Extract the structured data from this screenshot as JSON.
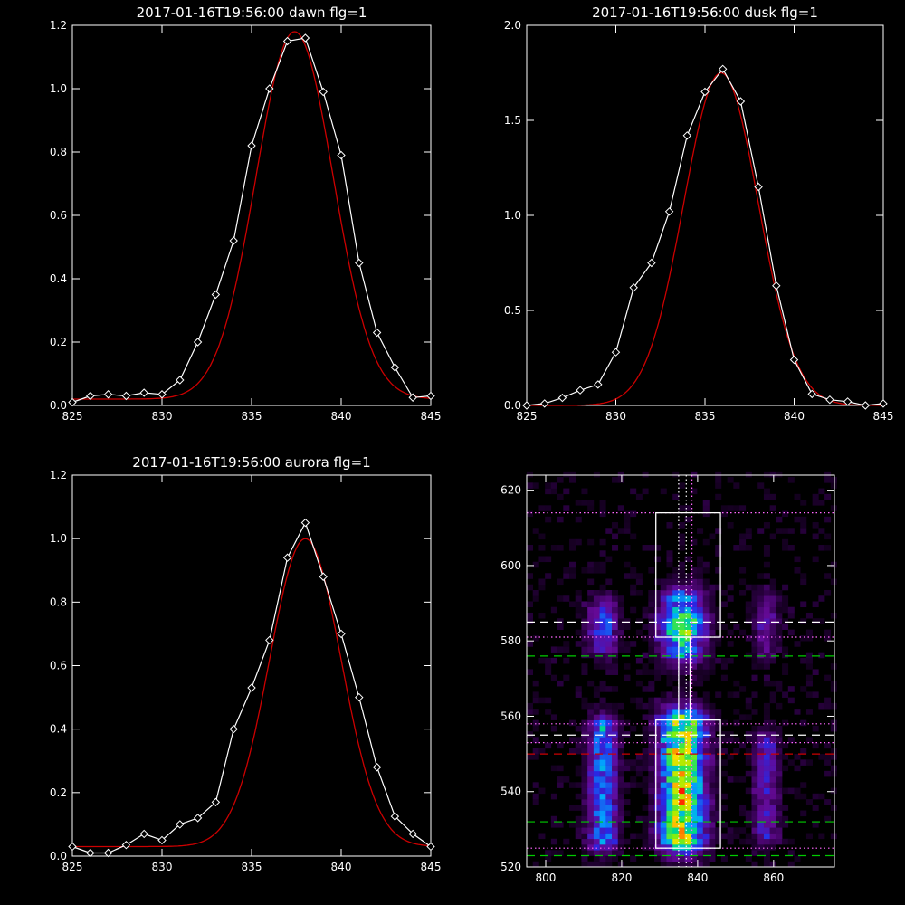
{
  "chart_data": [
    {
      "type": "line",
      "title": "2017-01-16T19:56:00 dawn flg=1",
      "xlim": [
        825,
        845
      ],
      "ylim": [
        0.0,
        1.2
      ],
      "xticks": [
        "825",
        "830",
        "835",
        "840",
        "845"
      ],
      "yticks": [
        "0.0",
        "0.2",
        "0.4",
        "0.6",
        "0.8",
        "1.0",
        "1.2"
      ],
      "grid": false,
      "series": [
        {
          "color": "#ffffff",
          "marker": "diamond",
          "x": [
            825,
            826,
            827,
            828,
            829,
            830,
            831,
            832,
            833,
            834,
            835,
            836,
            837,
            838,
            839,
            840,
            841,
            842,
            843,
            844,
            845
          ],
          "y": [
            0.01,
            0.03,
            0.035,
            0.03,
            0.04,
            0.035,
            0.08,
            0.2,
            0.35,
            0.52,
            0.82,
            1.0,
            1.15,
            1.16,
            0.99,
            0.79,
            0.45,
            0.23,
            0.12,
            0.025,
            0.03
          ]
        },
        {
          "color": "#cc0000",
          "fit": "gaussian",
          "amplitude": 1.16,
          "center": 837.4,
          "sigma": 2.15,
          "offset": 0.02
        }
      ]
    },
    {
      "type": "line",
      "title": "2017-01-16T19:56:00 dusk flg=1",
      "xlim": [
        825,
        845
      ],
      "ylim": [
        0.0,
        2.0
      ],
      "xticks": [
        "825",
        "830",
        "835",
        "840",
        "845"
      ],
      "yticks": [
        "0.0",
        "0.5",
        "1.0",
        "1.5",
        "2.0"
      ],
      "grid": false,
      "series": [
        {
          "color": "#ffffff",
          "marker": "diamond",
          "x": [
            825,
            826,
            827,
            828,
            829,
            830,
            831,
            832,
            833,
            834,
            835,
            836,
            837,
            838,
            839,
            840,
            841,
            842,
            843,
            844,
            845
          ],
          "y": [
            0.0,
            0.01,
            0.04,
            0.08,
            0.11,
            0.28,
            0.62,
            0.75,
            1.02,
            1.42,
            1.65,
            1.77,
            1.6,
            1.15,
            0.63,
            0.24,
            0.06,
            0.03,
            0.02,
            0.0,
            0.01
          ]
        },
        {
          "color": "#cc0000",
          "fit": "gaussian",
          "amplitude": 1.75,
          "center": 835.9,
          "sigma": 2.1,
          "offset": 0.0
        }
      ]
    },
    {
      "type": "line",
      "title": "2017-01-16T19:56:00 aurora flg=1",
      "xlim": [
        825,
        845
      ],
      "ylim": [
        0.0,
        1.2
      ],
      "xticks": [
        "825",
        "830",
        "835",
        "840",
        "845"
      ],
      "yticks": [
        "0.0",
        "0.2",
        "0.4",
        "0.6",
        "0.8",
        "1.0",
        "1.2"
      ],
      "grid": false,
      "series": [
        {
          "color": "#ffffff",
          "marker": "diamond",
          "x": [
            825,
            826,
            827,
            828,
            829,
            830,
            831,
            832,
            833,
            834,
            835,
            836,
            837,
            838,
            839,
            840,
            841,
            842,
            843,
            844,
            845
          ],
          "y": [
            0.03,
            0.01,
            0.01,
            0.035,
            0.07,
            0.05,
            0.1,
            0.12,
            0.17,
            0.4,
            0.53,
            0.68,
            0.94,
            1.05,
            0.88,
            0.7,
            0.5,
            0.28,
            0.125,
            0.07,
            0.03
          ]
        },
        {
          "color": "#cc0000",
          "fit": "gaussian",
          "amplitude": 0.97,
          "center": 838.0,
          "sigma": 2.0,
          "offset": 0.03
        }
      ]
    },
    {
      "type": "heatmap",
      "xlim": [
        795,
        876
      ],
      "ylim": [
        520,
        624
      ],
      "xticks": [
        "800",
        "820",
        "840",
        "860"
      ],
      "yticks": [
        "520",
        "540",
        "560",
        "580",
        "600",
        "620"
      ],
      "colormap": "rainbow",
      "emission_columns": [
        {
          "x_center": 815,
          "x_width": 6,
          "y_ranges": [
            [
              578,
              590
            ],
            [
              526,
              558
            ]
          ],
          "peak": 0.55
        },
        {
          "x_center": 836,
          "x_width": 9,
          "y_ranges": [
            [
              576,
              592
            ],
            [
              526,
              560
            ]
          ],
          "peak": 1.0
        },
        {
          "x_center": 858,
          "x_width": 5,
          "y_ranges": [
            [
              576,
              592
            ],
            [
              528,
              554
            ]
          ],
          "peak": 0.35
        }
      ],
      "boxes": [
        {
          "x": [
            829,
            846
          ],
          "y": [
            581,
            614
          ],
          "color": "#ffffff"
        },
        {
          "x": [
            829,
            846
          ],
          "y": [
            525,
            559
          ],
          "color": "#ffffff"
        },
        {
          "x": [
            835,
            838
          ],
          "y": [
            559,
            581
          ],
          "color": "#ffffff"
        }
      ],
      "hlines": [
        {
          "y": 614,
          "color": "#ff66ff",
          "style": "dotted"
        },
        {
          "y": 585,
          "color": "#ffffff",
          "style": "dashed"
        },
        {
          "y": 581,
          "color": "#ff66ff",
          "style": "dotted"
        },
        {
          "y": 576,
          "color": "#00cc00",
          "style": "dashed"
        },
        {
          "y": 558,
          "color": "#ff66ff",
          "style": "dotted"
        },
        {
          "y": 555,
          "color": "#ffffff",
          "style": "dashed"
        },
        {
          "y": 553,
          "color": "#ff66ff",
          "style": "dotted"
        },
        {
          "y": 550,
          "color": "#cc0000",
          "style": "dashed"
        },
        {
          "y": 532,
          "color": "#00cc00",
          "style": "dashed"
        },
        {
          "y": 525,
          "color": "#ff66ff",
          "style": "dotted"
        },
        {
          "y": 523,
          "color": "#00cc00",
          "style": "dashed"
        }
      ],
      "vlines": [
        {
          "x": 835,
          "color": "#ffffff",
          "style": "dotted"
        },
        {
          "x": 837,
          "color": "#ffffff",
          "style": "dotted"
        },
        {
          "x": 838.5,
          "color": "#ff66ff",
          "style": "dotted"
        }
      ]
    }
  ]
}
